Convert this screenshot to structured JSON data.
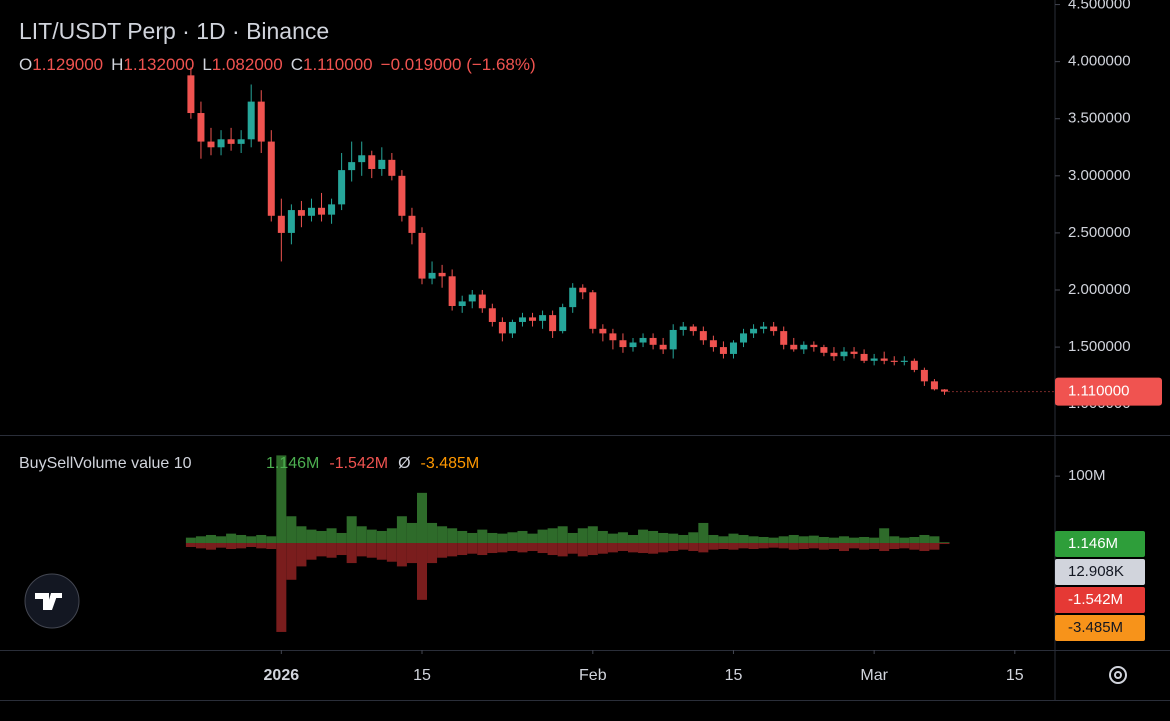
{
  "header": {
    "title": "LIT/USDT Perp · 1D · Binance",
    "ohlc": [
      {
        "key": "O",
        "value": "1.129000"
      },
      {
        "key": "H",
        "value": "1.132000"
      },
      {
        "key": "L",
        "value": "1.082000"
      },
      {
        "key": "C",
        "value": "1.110000"
      }
    ],
    "change": "−0.019000 (−1.68%)"
  },
  "chart_data": [
    {
      "type": "candlestick",
      "up_color": "#26a69a",
      "down_color": "#ef5350",
      "open": [
        3.88,
        3.55,
        3.3,
        3.25,
        3.32,
        3.28,
        3.32,
        3.65,
        3.3,
        2.65,
        2.5,
        2.7,
        2.65,
        2.72,
        2.66,
        2.75,
        3.05,
        3.12,
        3.18,
        3.06,
        3.14,
        3.0,
        2.65,
        2.5,
        2.1,
        2.15,
        2.12,
        1.86,
        1.9,
        1.96,
        1.84,
        1.72,
        1.62,
        1.72,
        1.76,
        1.73,
        1.78,
        1.64,
        1.85,
        2.02,
        1.98,
        1.66,
        1.62,
        1.56,
        1.5,
        1.54,
        1.58,
        1.52,
        1.48,
        1.65,
        1.68,
        1.64,
        1.56,
        1.5,
        1.44,
        1.54,
        1.62,
        1.66,
        1.68,
        1.64,
        1.52,
        1.48,
        1.52,
        1.5,
        1.45,
        1.42,
        1.46,
        1.44,
        1.38,
        1.4,
        1.38,
        1.37,
        1.38,
        1.3,
        1.2,
        1.129
      ],
      "high": [
        3.95,
        3.65,
        3.42,
        3.4,
        3.42,
        3.4,
        3.8,
        3.75,
        3.4,
        2.8,
        2.75,
        2.78,
        2.8,
        2.85,
        2.8,
        3.2,
        3.3,
        3.3,
        3.22,
        3.25,
        3.2,
        3.05,
        2.72,
        2.55,
        2.25,
        2.22,
        2.18,
        1.95,
        2.0,
        2.0,
        1.88,
        1.76,
        1.74,
        1.8,
        1.8,
        1.82,
        1.82,
        1.88,
        2.06,
        2.05,
        2.0,
        1.7,
        1.66,
        1.62,
        1.58,
        1.62,
        1.62,
        1.58,
        1.7,
        1.72,
        1.7,
        1.68,
        1.6,
        1.55,
        1.56,
        1.66,
        1.7,
        1.72,
        1.72,
        1.68,
        1.58,
        1.55,
        1.55,
        1.52,
        1.5,
        1.5,
        1.5,
        1.48,
        1.44,
        1.46,
        1.42,
        1.42,
        1.4,
        1.32,
        1.22,
        1.132
      ],
      "low": [
        3.5,
        3.15,
        3.18,
        3.18,
        3.22,
        3.2,
        3.25,
        3.2,
        2.6,
        2.25,
        2.4,
        2.55,
        2.6,
        2.6,
        2.58,
        2.7,
        2.95,
        3.0,
        2.98,
        3.0,
        2.96,
        2.6,
        2.4,
        2.05,
        2.05,
        2.02,
        1.82,
        1.8,
        1.84,
        1.8,
        1.68,
        1.55,
        1.58,
        1.68,
        1.68,
        1.66,
        1.58,
        1.62,
        1.8,
        1.92,
        1.62,
        1.55,
        1.48,
        1.45,
        1.46,
        1.5,
        1.48,
        1.44,
        1.4,
        1.6,
        1.6,
        1.52,
        1.46,
        1.4,
        1.4,
        1.5,
        1.58,
        1.62,
        1.6,
        1.48,
        1.46,
        1.44,
        1.46,
        1.42,
        1.38,
        1.38,
        1.4,
        1.36,
        1.34,
        1.35,
        1.34,
        1.34,
        1.28,
        1.16,
        1.12,
        1.082
      ],
      "close": [
        3.55,
        3.3,
        3.25,
        3.32,
        3.28,
        3.32,
        3.65,
        3.3,
        2.65,
        2.5,
        2.7,
        2.65,
        2.72,
        2.66,
        2.75,
        3.05,
        3.12,
        3.18,
        3.06,
        3.14,
        3.0,
        2.65,
        2.5,
        2.1,
        2.15,
        2.12,
        1.86,
        1.9,
        1.96,
        1.84,
        1.72,
        1.62,
        1.72,
        1.76,
        1.73,
        1.78,
        1.64,
        1.85,
        2.02,
        1.98,
        1.66,
        1.62,
        1.56,
        1.5,
        1.54,
        1.58,
        1.52,
        1.48,
        1.65,
        1.68,
        1.64,
        1.56,
        1.5,
        1.44,
        1.54,
        1.62,
        1.66,
        1.68,
        1.64,
        1.52,
        1.48,
        1.52,
        1.5,
        1.45,
        1.42,
        1.46,
        1.44,
        1.38,
        1.4,
        1.38,
        1.37,
        1.38,
        1.3,
        1.2,
        1.13,
        1.11
      ],
      "xlim": [
        -19,
        86
      ],
      "xticks": [
        {
          "value": 9,
          "label": "2026"
        },
        {
          "value": 23,
          "label": "15"
        },
        {
          "value": 40,
          "label": "Feb"
        },
        {
          "value": 54,
          "label": "15"
        },
        {
          "value": 68,
          "label": "Mar"
        },
        {
          "value": 82,
          "label": "15"
        }
      ],
      "ylim": [
        0.73,
        4.54
      ],
      "yticks": [
        {
          "value": 4.5,
          "label": "4.500000"
        },
        {
          "value": 4.0,
          "label": "4.000000"
        },
        {
          "value": 3.5,
          "label": "3.500000"
        },
        {
          "value": 3.0,
          "label": "3.000000"
        },
        {
          "value": 2.5,
          "label": "2.500000"
        },
        {
          "value": 2.0,
          "label": "2.000000"
        },
        {
          "value": 1.5,
          "label": "1.500000"
        },
        {
          "value": 1.0,
          "label": "1.000000"
        }
      ],
      "last_price": {
        "value": 1.11,
        "label": "1.110000",
        "color": "#f05350"
      }
    },
    {
      "type": "bar",
      "title": "BuySellVolume value 10",
      "readout": [
        {
          "label": "1.146M",
          "color": "#4caf50"
        },
        {
          "label": "-1.542M",
          "color": "#ef5350"
        },
        {
          "label": "Ø",
          "color": "#d1d4dc"
        },
        {
          "label": "-3.485M",
          "color": "#ff9800"
        }
      ],
      "badges": [
        {
          "label": "1.146M",
          "color": "#2e9e3a",
          "text_color": "#ffffff"
        },
        {
          "label": "12.908K",
          "color": "#d1d4dc",
          "text_color": "#131722"
        },
        {
          "label": "-1.542M",
          "color": "#e53935",
          "text_color": "#ffffff"
        },
        {
          "label": "-3.485M",
          "color": "#f7931a",
          "text_color": "#131722"
        }
      ],
      "series": [
        {
          "color": "#2e6b2a",
          "values": [
            8,
            10,
            12,
            10,
            14,
            12,
            10,
            12,
            10,
            131,
            40,
            25,
            20,
            18,
            22,
            15,
            40,
            25,
            20,
            18,
            22,
            40,
            30,
            75,
            30,
            25,
            22,
            18,
            15,
            20,
            15,
            14,
            16,
            18,
            14,
            20,
            22,
            25,
            15,
            22,
            25,
            18,
            14,
            16,
            12,
            20,
            18,
            15,
            14,
            12,
            16,
            30,
            12,
            10,
            14,
            12,
            10,
            9,
            8,
            10,
            12,
            10,
            11,
            9,
            8,
            10,
            8,
            9,
            8,
            22,
            10,
            8,
            9,
            12,
            10,
            1.146
          ]
        },
        {
          "color": "#7a1d1d",
          "values": [
            -6,
            -8,
            -10,
            -7,
            -9,
            -8,
            -6,
            -8,
            -9,
            -133,
            -55,
            -35,
            -25,
            -20,
            -22,
            -18,
            -30,
            -20,
            -22,
            -25,
            -28,
            -35,
            -30,
            -85,
            -30,
            -22,
            -20,
            -18,
            -16,
            -18,
            -15,
            -14,
            -12,
            -14,
            -12,
            -15,
            -18,
            -20,
            -16,
            -20,
            -18,
            -16,
            -14,
            -12,
            -14,
            -15,
            -16,
            -14,
            -12,
            -10,
            -12,
            -14,
            -10,
            -9,
            -10,
            -8,
            -9,
            -8,
            -7,
            -8,
            -10,
            -9,
            -8,
            -10,
            -9,
            -12,
            -8,
            -10,
            -9,
            -12,
            -9,
            -8,
            -10,
            -12,
            -10,
            -1.542
          ]
        }
      ],
      "xlim": [
        -19,
        86
      ],
      "ylim": [
        -160,
        160
      ],
      "yticks": [
        {
          "value": 100,
          "label": "100M"
        }
      ]
    }
  ]
}
